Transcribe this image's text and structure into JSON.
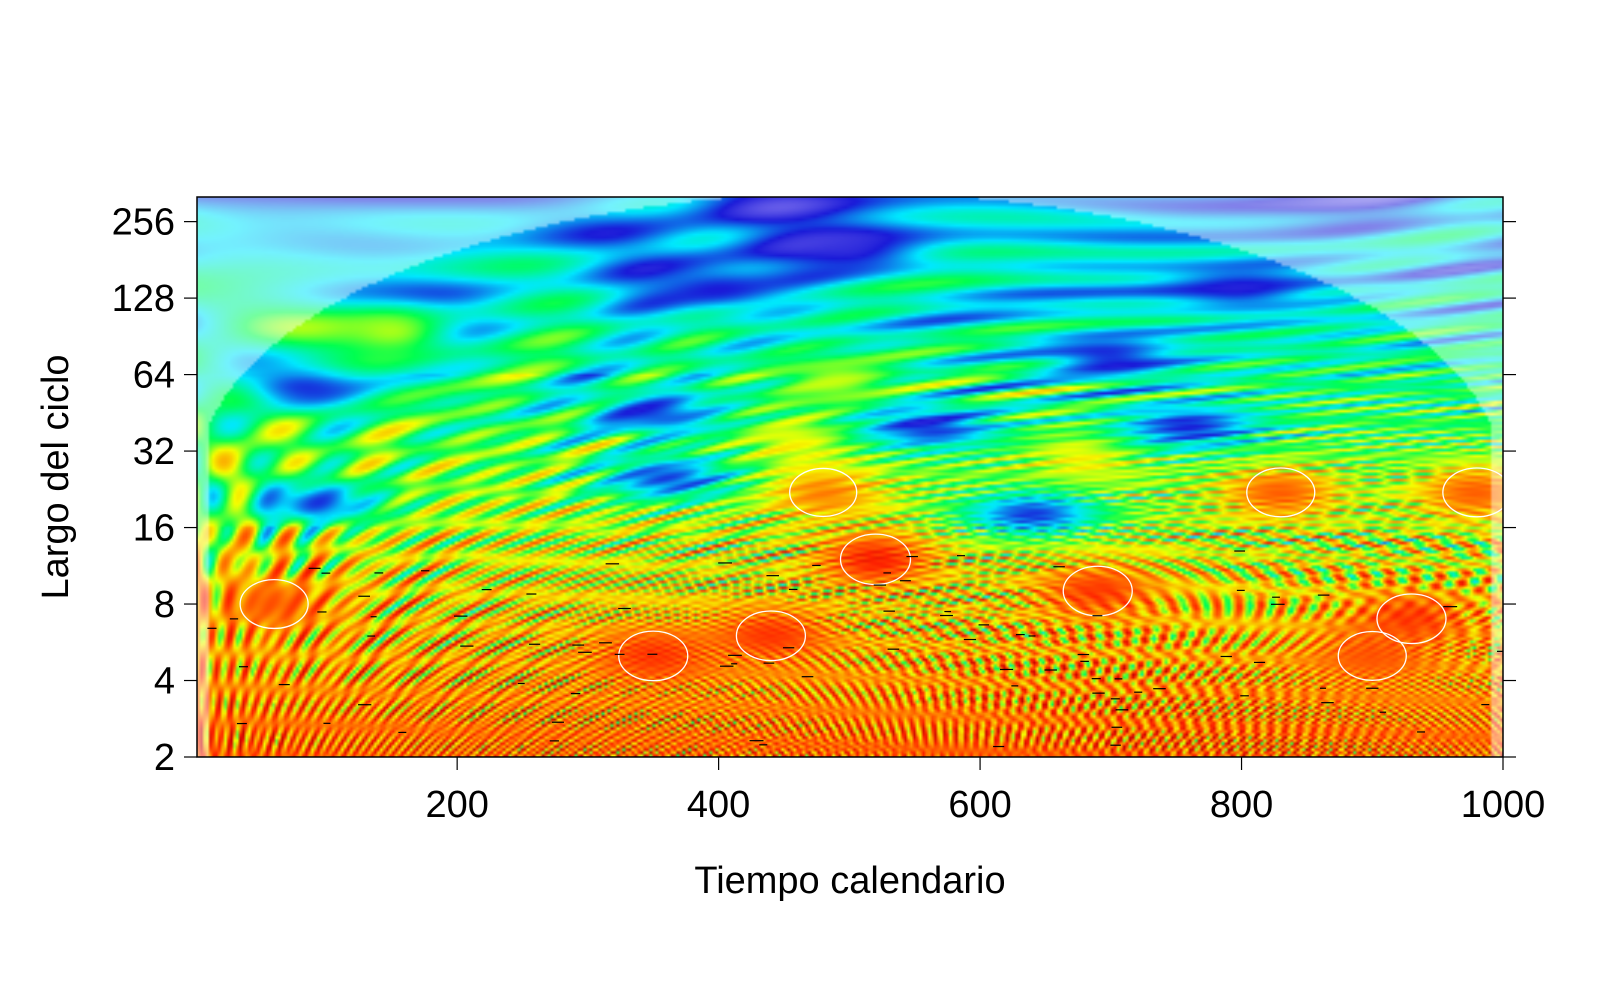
{
  "chart_data": {
    "type": "heatmap",
    "title": "",
    "xlabel": "Tiempo calendario",
    "ylabel": "Largo del ciclo",
    "x_ticks": [
      200,
      400,
      600,
      800,
      1000
    ],
    "x_tick_labels": [
      "200",
      "400",
      "600",
      "800",
      "1000"
    ],
    "y_ticks": [
      2,
      4,
      8,
      16,
      32,
      64,
      128,
      256
    ],
    "y_tick_labels": [
      "2",
      "4",
      "8",
      "16",
      "32",
      "64",
      "128",
      "256"
    ],
    "xlim": [
      1,
      1000
    ],
    "ylim": [
      2,
      320
    ],
    "y_scale": "log2",
    "colormap": [
      "#8a7cf2",
      "#1a1ad8",
      "#00e8ff",
      "#00ff50",
      "#f5ff00",
      "#ff8a00",
      "#ff2200",
      "#c80000"
    ],
    "significance_contour_color": "#ffffff",
    "ridge_color": "#000000",
    "cone_of_influence_shading": "#ffffff",
    "hotspots": [
      {
        "x": 520,
        "y": 12,
        "power": 0.9
      },
      {
        "x": 690,
        "y": 9,
        "power": 0.85
      },
      {
        "x": 930,
        "y": 7,
        "power": 0.85
      },
      {
        "x": 830,
        "y": 22,
        "power": 0.8
      },
      {
        "x": 480,
        "y": 22,
        "power": 0.75
      },
      {
        "x": 980,
        "y": 22,
        "power": 0.8
      },
      {
        "x": 60,
        "y": 8,
        "power": 0.8
      },
      {
        "x": 350,
        "y": 5,
        "power": 0.85
      },
      {
        "x": 440,
        "y": 6,
        "power": 0.85
      },
      {
        "x": 900,
        "y": 5,
        "power": 0.8
      },
      {
        "x": 460,
        "y": 35,
        "power": 0.6
      },
      {
        "x": 680,
        "y": 30,
        "power": 0.6
      },
      {
        "x": 150,
        "y": 95,
        "power": 0.55
      },
      {
        "x": 490,
        "y": 60,
        "power": 0.55
      }
    ],
    "coldspots": [
      {
        "x": 500,
        "y": 200,
        "power": 0.1
      },
      {
        "x": 800,
        "y": 140,
        "power": 0.12
      },
      {
        "x": 400,
        "y": 140,
        "power": 0.12
      },
      {
        "x": 700,
        "y": 75,
        "power": 0.1
      },
      {
        "x": 350,
        "y": 45,
        "power": 0.12
      },
      {
        "x": 560,
        "y": 40,
        "power": 0.1
      },
      {
        "x": 760,
        "y": 40,
        "power": 0.1
      },
      {
        "x": 80,
        "y": 58,
        "power": 0.12
      },
      {
        "x": 360,
        "y": 25,
        "power": 0.12
      },
      {
        "x": 640,
        "y": 18,
        "power": 0.1
      },
      {
        "x": 90,
        "y": 20,
        "power": 0.12
      }
    ]
  }
}
